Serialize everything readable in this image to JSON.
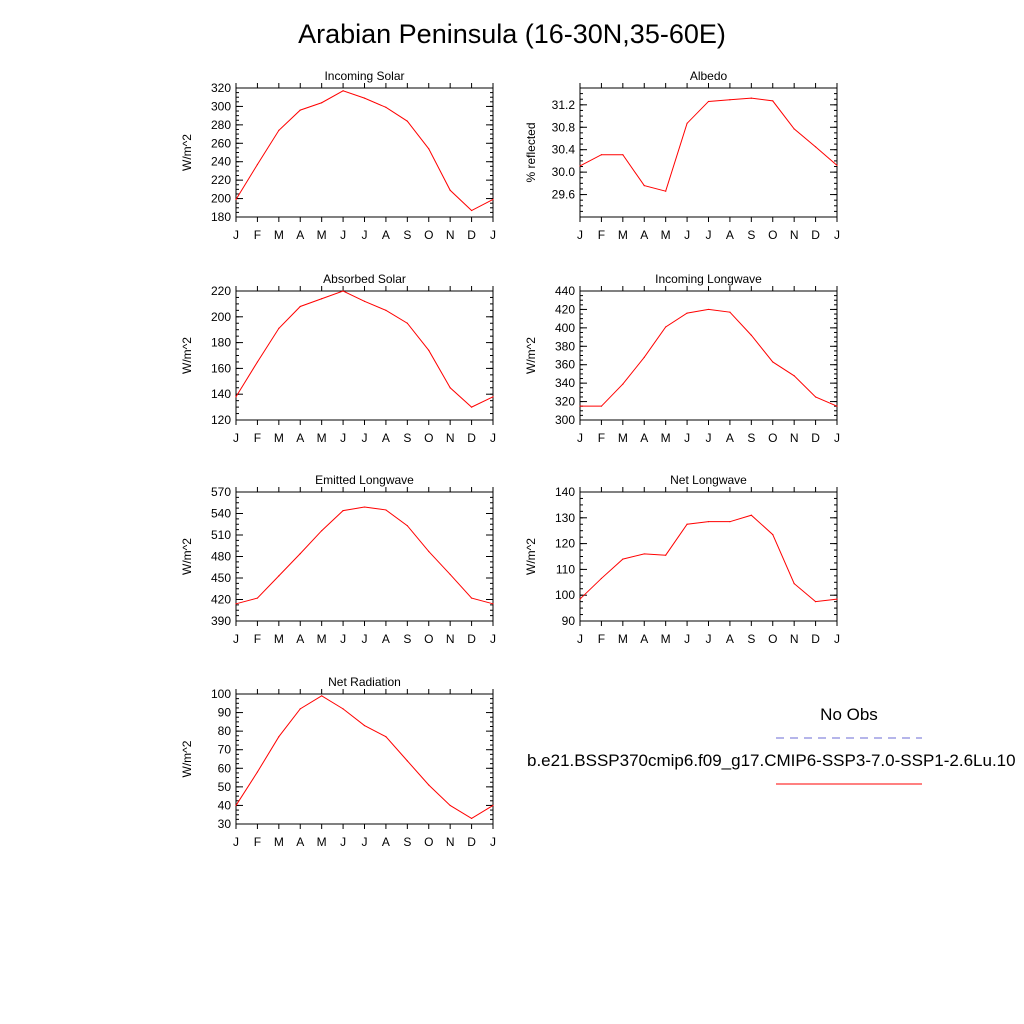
{
  "page": {
    "title": "Arabian Peninsula (16-30N,35-60E)"
  },
  "legend": {
    "obs_label": "No Obs",
    "case_label": "b.e21.BSSP370cmip6.f09_g17.CMIP6-SSP3-7.0-SSP1-2.6Lu.10",
    "obs_color": "#6b6bd6",
    "case_color": "#ff0000"
  },
  "chart_data": [
    {
      "type": "line",
      "title": "Incoming Solar",
      "ylabel": "W/m^2",
      "categories": [
        "J",
        "F",
        "M",
        "A",
        "M",
        "J",
        "J",
        "A",
        "S",
        "O",
        "N",
        "D",
        "J"
      ],
      "ylim": [
        180,
        320
      ],
      "yticks": [
        "180",
        "200",
        "220",
        "240",
        "260",
        "280",
        "300",
        "320"
      ],
      "series": [
        {
          "values": [
            199,
            237,
            274,
            296,
            304,
            317,
            309,
            299,
            284,
            254,
            209,
            187,
            199
          ]
        }
      ]
    },
    {
      "type": "line",
      "title": "Albedo",
      "ylabel": "% reflected",
      "categories": [
        "J",
        "F",
        "M",
        "A",
        "M",
        "J",
        "J",
        "A",
        "S",
        "O",
        "N",
        "D",
        "J"
      ],
      "ylim": [
        29.2,
        31.5
      ],
      "yticks": [
        "29.6",
        "30.0",
        "30.4",
        "30.8",
        "31.2"
      ],
      "series": [
        {
          "values": [
            30.11,
            30.31,
            30.31,
            29.76,
            29.66,
            30.87,
            31.26,
            31.29,
            31.32,
            31.27,
            30.77,
            30.45,
            30.12
          ]
        }
      ]
    },
    {
      "type": "line",
      "title": "Absorbed Solar",
      "ylabel": "W/m^2",
      "categories": [
        "J",
        "F",
        "M",
        "A",
        "M",
        "J",
        "J",
        "A",
        "S",
        "O",
        "N",
        "D",
        "J"
      ],
      "ylim": [
        120,
        220
      ],
      "yticks": [
        "120",
        "140",
        "160",
        "180",
        "200",
        "220"
      ],
      "series": [
        {
          "values": [
            138,
            165,
            191,
            208,
            214,
            220,
            212,
            205,
            195,
            174,
            145,
            130,
            138
          ]
        }
      ]
    },
    {
      "type": "line",
      "title": "Incoming Longwave",
      "ylabel": "W/m^2",
      "categories": [
        "J",
        "F",
        "M",
        "A",
        "M",
        "J",
        "J",
        "A",
        "S",
        "O",
        "N",
        "D",
        "J"
      ],
      "ylim": [
        300,
        440
      ],
      "yticks": [
        "300",
        "320",
        "340",
        "360",
        "380",
        "400",
        "420",
        "440"
      ],
      "series": [
        {
          "values": [
            315,
            315,
            339,
            368,
            401,
            416,
            420,
            417,
            392,
            363,
            348,
            325,
            315
          ]
        }
      ]
    },
    {
      "type": "line",
      "title": "Emitted Longwave",
      "ylabel": "W/m^2",
      "categories": [
        "J",
        "F",
        "M",
        "A",
        "M",
        "J",
        "J",
        "A",
        "S",
        "O",
        "N",
        "D",
        "J"
      ],
      "ylim": [
        390,
        570
      ],
      "yticks": [
        "390",
        "420",
        "450",
        "480",
        "510",
        "540",
        "570"
      ],
      "series": [
        {
          "values": [
            414,
            422,
            453,
            484,
            516,
            544,
            549,
            545,
            523,
            487,
            455,
            422,
            414
          ]
        }
      ]
    },
    {
      "type": "line",
      "title": "Net Longwave",
      "ylabel": "W/m^2",
      "categories": [
        "J",
        "F",
        "M",
        "A",
        "M",
        "J",
        "J",
        "A",
        "S",
        "O",
        "N",
        "D",
        "J"
      ],
      "ylim": [
        90,
        140
      ],
      "yticks": [
        "90",
        "100",
        "110",
        "120",
        "130",
        "140"
      ],
      "series": [
        {
          "values": [
            98.5,
            106.5,
            114,
            116,
            115.5,
            127.5,
            128.5,
            128.5,
            131,
            123.5,
            104.5,
            97.5,
            98.5
          ]
        }
      ]
    },
    {
      "type": "line",
      "title": "Net Radiation",
      "ylabel": "W/m^2",
      "categories": [
        "J",
        "F",
        "M",
        "A",
        "M",
        "J",
        "J",
        "A",
        "S",
        "O",
        "N",
        "D",
        "J"
      ],
      "ylim": [
        30,
        100
      ],
      "yticks": [
        "30",
        "40",
        "50",
        "60",
        "70",
        "80",
        "90",
        "100"
      ],
      "series": [
        {
          "values": [
            40,
            58,
            77,
            92,
            99,
            92,
            83,
            77,
            64,
            51,
            40,
            33,
            40
          ]
        }
      ]
    }
  ]
}
